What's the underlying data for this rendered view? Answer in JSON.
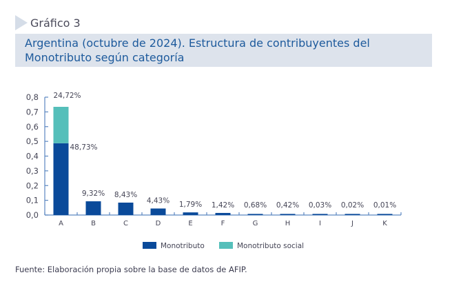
{
  "header": {
    "figure_label": "Gráfico 3",
    "title": "Argentina (octubre de 2024). Estructura de contribuyentes del Monotributo según categoría"
  },
  "source": "Fuente: Elaboración propia sobre la base de datos de AFIP.",
  "colors": {
    "monotributo": "#0a4a9a",
    "social": "#55bfba",
    "axis": "#5a86c0",
    "text": "#444455"
  },
  "chart_data": {
    "type": "bar",
    "stacked": true,
    "categories": [
      "A",
      "B",
      "C",
      "D",
      "E",
      "F",
      "G",
      "H",
      "I",
      "J",
      "K"
    ],
    "series": [
      {
        "name": "Monotributo",
        "values": [
          0.4873,
          0.0932,
          0.0843,
          0.0443,
          0.0179,
          0.0142,
          0.0068,
          0.0042,
          0.0003,
          0.0002,
          0.0001
        ],
        "labels": [
          "48,73%",
          "9,32%",
          "8,43%",
          "4,43%",
          "1,79%",
          "1,42%",
          "0,68%",
          "0,42%",
          "0,03%",
          "0,02%",
          "0,01%"
        ]
      },
      {
        "name": "Monotributo social",
        "values": [
          0.2472,
          0,
          0,
          0,
          0,
          0,
          0,
          0,
          0,
          0,
          0
        ],
        "labels": [
          "24,72%",
          "",
          "",
          "",
          "",
          "",
          "",
          "",
          "",
          "",
          ""
        ]
      }
    ],
    "yticks": [
      "0,0",
      "0,1",
      "0,2",
      "0,3",
      "0,4",
      "0,5",
      "0,6",
      "0,7",
      "0,8"
    ],
    "ylim": [
      0,
      0.8
    ],
    "legend": [
      "Monotributo",
      "Monotributo social"
    ],
    "legend_position": "bottom",
    "grid": false
  }
}
